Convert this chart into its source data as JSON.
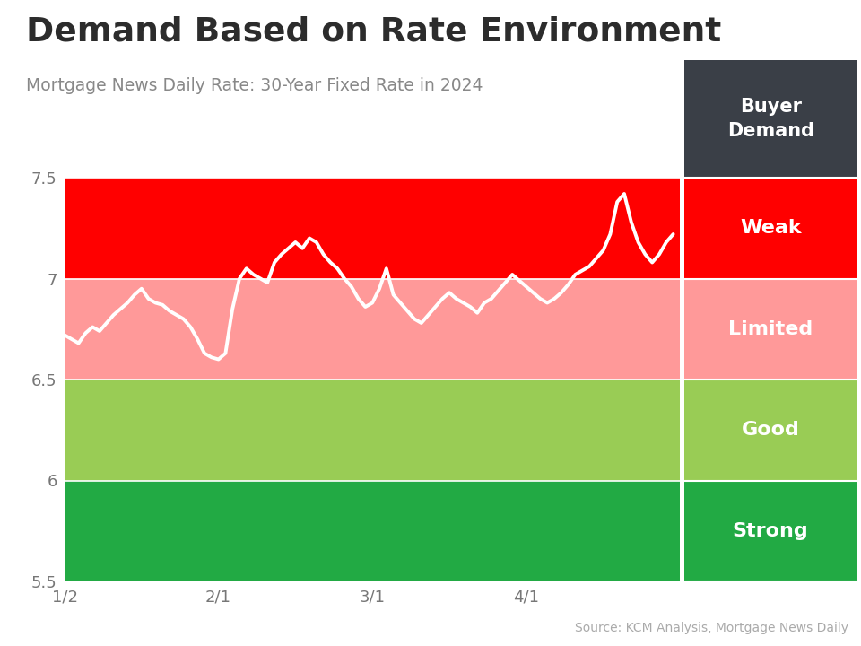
{
  "title": "Demand Based on Rate Environment",
  "subtitle": "Mortgage News Daily Rate: 30-Year Fixed Rate in 2024",
  "source": "Source: KCM Analysis, Mortgage News Daily",
  "ylim": [
    5.5,
    7.5
  ],
  "xlim_days": 88,
  "yticks": [
    5.5,
    6.0,
    6.5,
    7.0,
    7.5
  ],
  "ytick_labels": [
    "5.5",
    "6",
    "6.5",
    "7",
    "7.5"
  ],
  "xtick_positions": [
    0,
    22,
    44,
    66
  ],
  "xtick_labels": [
    "1/2",
    "2/1",
    "3/1",
    "4/1"
  ],
  "zones": [
    {
      "ymin": 7.0,
      "ymax": 7.5,
      "color": "#ff0000",
      "label": "Weak",
      "label_color": "#ffffff"
    },
    {
      "ymin": 6.5,
      "ymax": 7.0,
      "color": "#ff9999",
      "label": "Limited",
      "label_color": "#ffffff"
    },
    {
      "ymin": 6.0,
      "ymax": 6.5,
      "color": "#99cc55",
      "label": "Good",
      "label_color": "#ffffff"
    },
    {
      "ymin": 5.5,
      "ymax": 6.0,
      "color": "#22aa44",
      "label": "Strong",
      "label_color": "#ffffff"
    }
  ],
  "legend_header_bg": "#3a3f47",
  "legend_header_text": "Buyer\nDemand",
  "line_color": "#ffffff",
  "line_width": 2.8,
  "background_color": "#ffffff",
  "top_bar_color": "#29b5d8",
  "rate_data": [
    6.72,
    6.7,
    6.68,
    6.73,
    6.76,
    6.74,
    6.78,
    6.82,
    6.85,
    6.88,
    6.92,
    6.95,
    6.9,
    6.88,
    6.87,
    6.84,
    6.82,
    6.8,
    6.76,
    6.7,
    6.63,
    6.61,
    6.6,
    6.63,
    6.85,
    7.0,
    7.05,
    7.02,
    7.0,
    6.98,
    7.08,
    7.12,
    7.15,
    7.18,
    7.15,
    7.2,
    7.18,
    7.12,
    7.08,
    7.05,
    7.0,
    6.96,
    6.9,
    6.86,
    6.88,
    6.95,
    7.05,
    6.92,
    6.88,
    6.84,
    6.8,
    6.78,
    6.82,
    6.86,
    6.9,
    6.93,
    6.9,
    6.88,
    6.86,
    6.83,
    6.88,
    6.9,
    6.94,
    6.98,
    7.02,
    6.99,
    6.96,
    6.93,
    6.9,
    6.88,
    6.9,
    6.93,
    6.97,
    7.02,
    7.04,
    7.06,
    7.1,
    7.14,
    7.22,
    7.38,
    7.42,
    7.28,
    7.18,
    7.12,
    7.08,
    7.12,
    7.18,
    7.22
  ]
}
